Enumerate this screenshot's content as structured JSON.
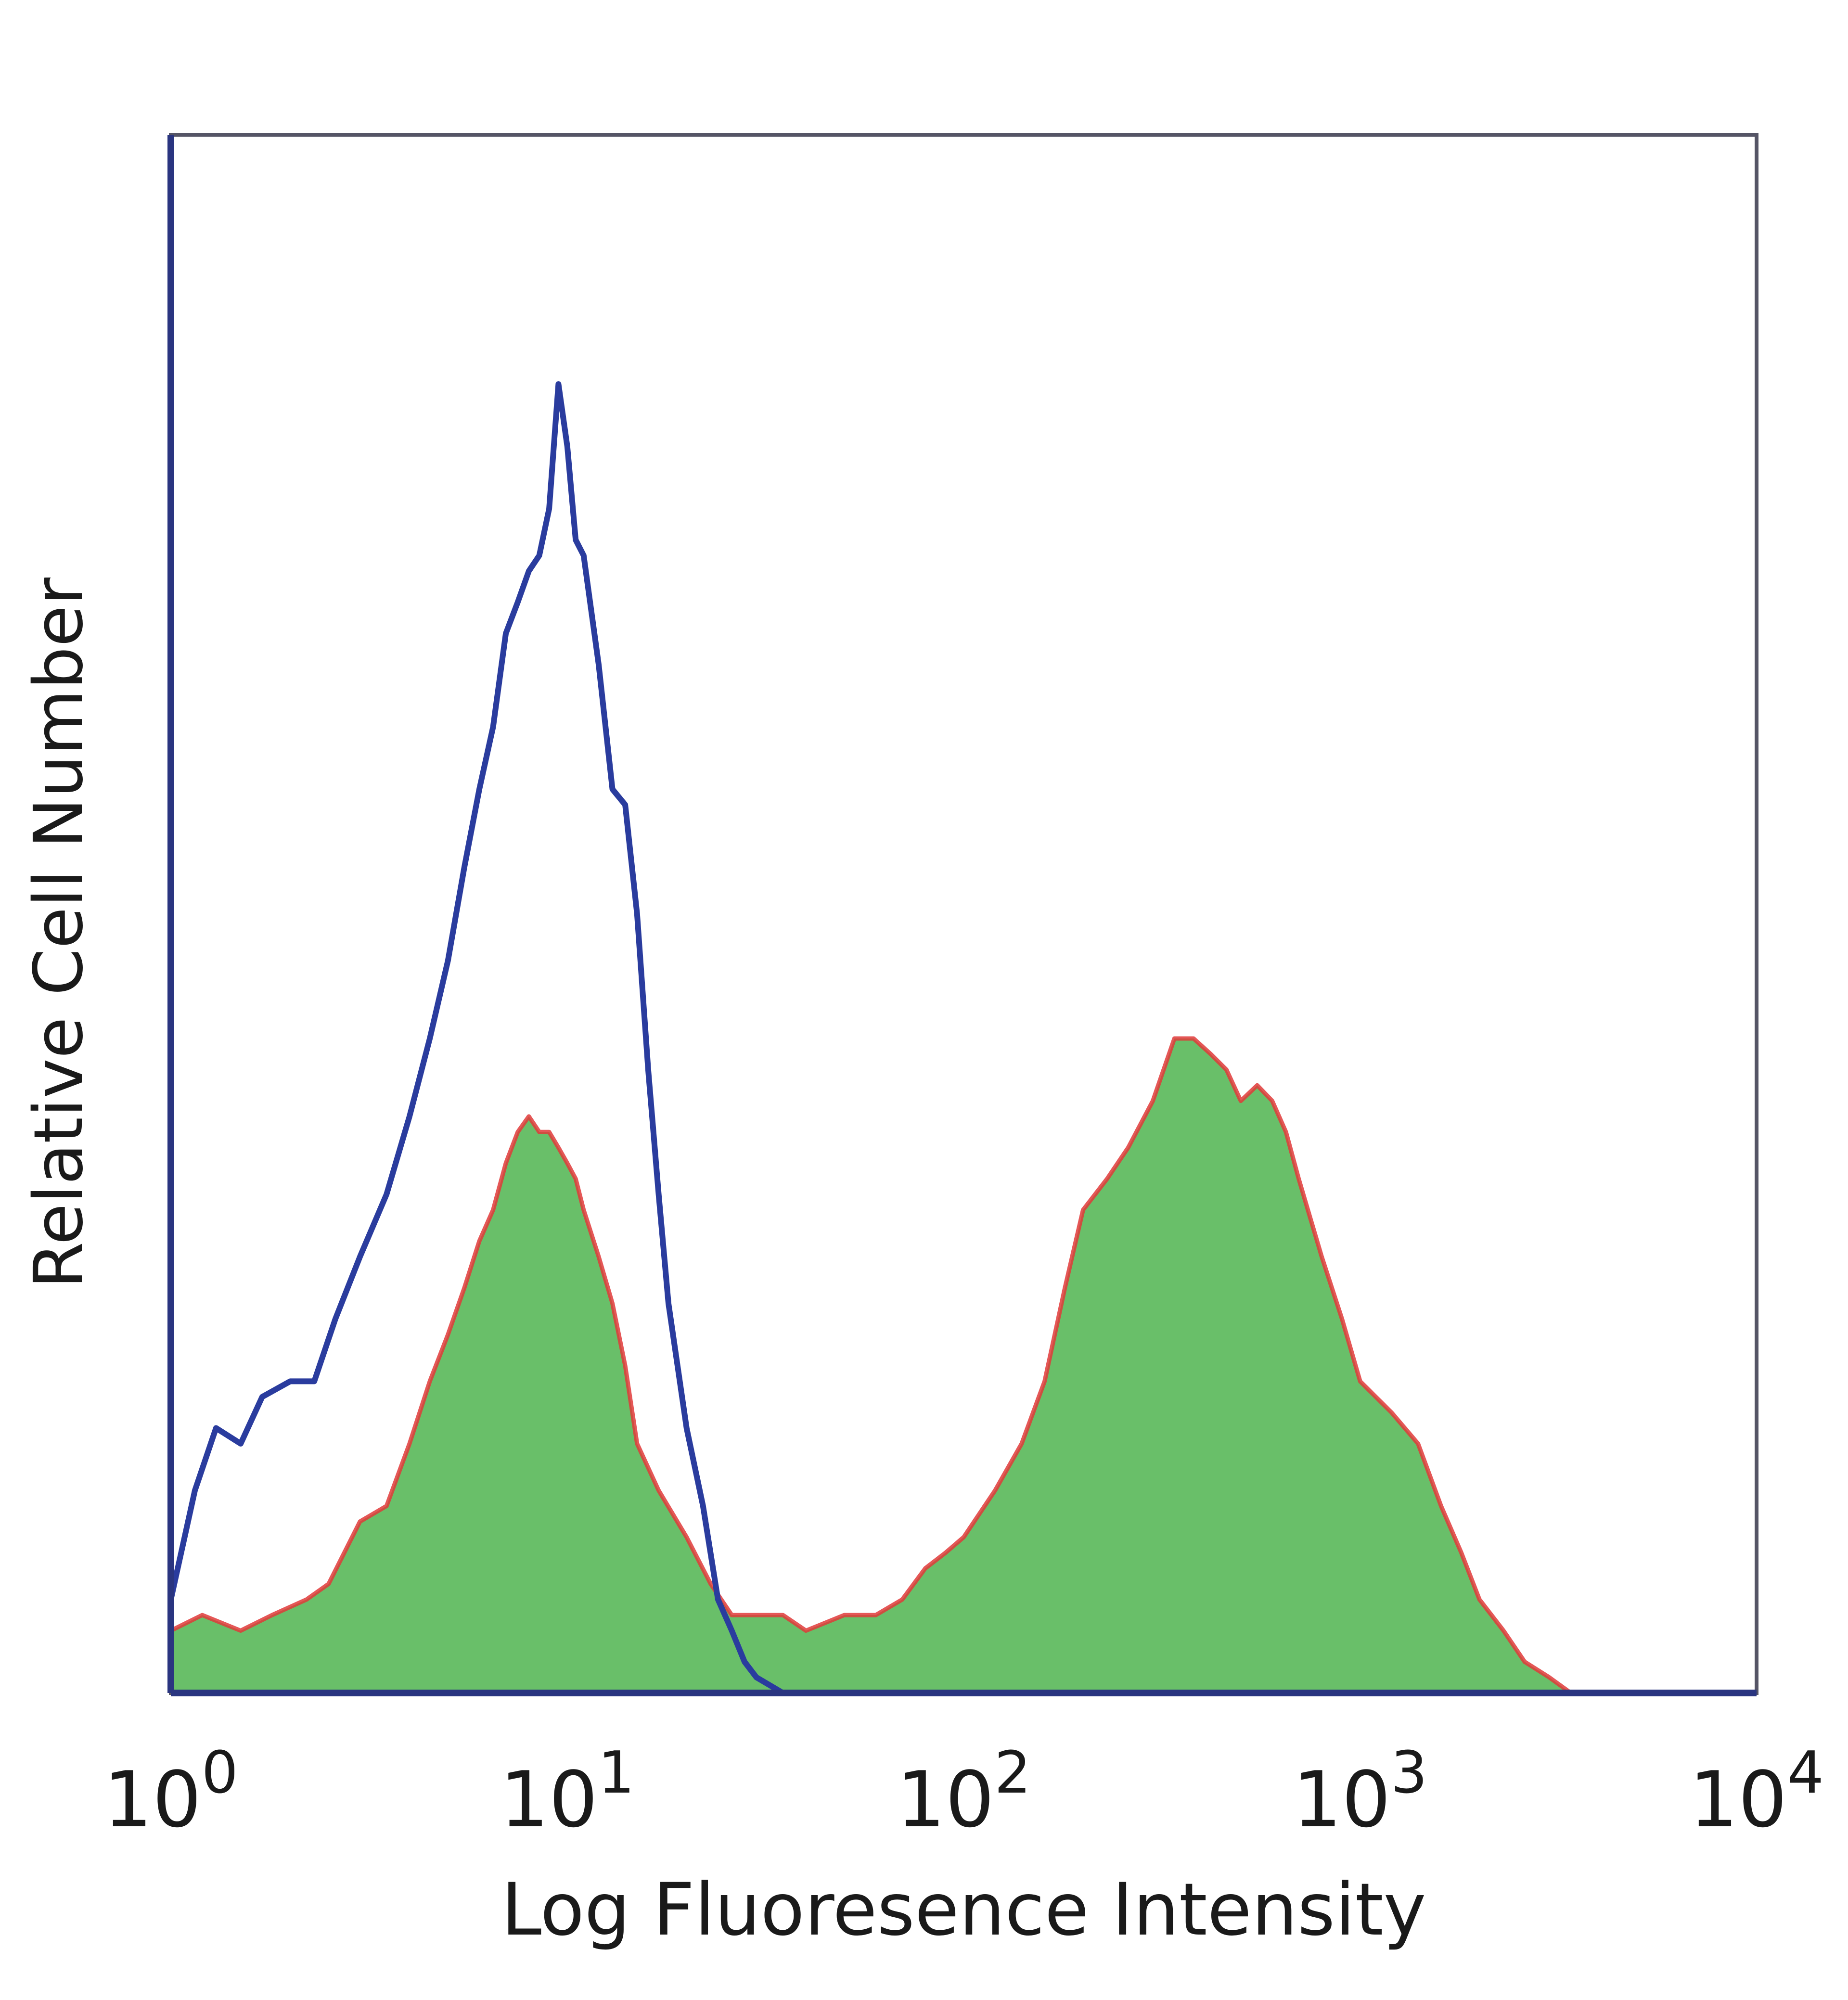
{
  "chart_data": {
    "type": "area",
    "title": "",
    "xlabel": "Log Fluoresence Intensity",
    "ylabel": "Relative Cell Number",
    "x_scale": "log",
    "xlim": [
      1,
      10000
    ],
    "ylim": [
      0,
      100
    ],
    "grid": false,
    "legend": "none",
    "x_ticks": [
      {
        "base": "10",
        "exp": "0",
        "value": 1
      },
      {
        "base": "10",
        "exp": "1",
        "value": 10
      },
      {
        "base": "10",
        "exp": "2",
        "value": 100
      },
      {
        "base": "10",
        "exp": "3",
        "value": 1000
      },
      {
        "base": "10",
        "exp": "4",
        "value": 10000
      }
    ],
    "colors": {
      "control_line": "#2a3c9e",
      "stained_fill": "#69bf69",
      "stained_line": "#e03a3a",
      "axis": "#2a3580"
    },
    "series": [
      {
        "style": "line",
        "color": "#2a3c9e",
        "x": [
          1.0,
          1.15,
          1.3,
          1.5,
          1.7,
          2.0,
          2.3,
          2.6,
          3.0,
          3.5,
          4.0,
          4.5,
          5.0,
          5.5,
          6.0,
          6.5,
          7.0,
          7.5,
          8.0,
          8.5,
          9.0,
          9.5,
          10.0,
          10.5,
          11.0,
          12.0,
          13.0,
          14.0,
          15.0,
          16.0,
          17.0,
          18.0,
          20.0,
          22.0,
          24.0,
          26.0,
          28.0,
          30.0,
          35.0,
          40.0,
          50.0,
          60.0,
          80.0,
          120.0,
          200.0,
          300.0,
          500.0,
          1000.0,
          3000.0,
          10000.0
        ],
        "y": [
          6,
          13,
          17,
          16,
          19,
          20,
          20,
          24,
          28,
          32,
          37,
          42,
          47,
          53,
          58,
          62,
          68,
          70,
          72,
          73,
          76,
          84,
          80,
          74,
          73,
          66,
          58,
          57,
          50,
          40,
          32,
          25,
          17,
          12,
          6,
          4,
          2,
          1,
          0,
          0,
          0,
          0,
          0,
          0,
          0,
          0,
          0,
          0,
          0,
          0
        ]
      },
      {
        "style": "filled",
        "color": "#69bf69",
        "line_color": "#e03a3a",
        "x": [
          1.0,
          1.2,
          1.5,
          1.8,
          2.2,
          2.5,
          3.0,
          3.5,
          4.0,
          4.5,
          5.0,
          5.5,
          6.0,
          6.5,
          7.0,
          7.5,
          8.0,
          8.5,
          9.0,
          9.5,
          10.0,
          10.5,
          11.0,
          12.0,
          13.0,
          14.0,
          15.0,
          17.0,
          20.0,
          23.0,
          26.0,
          30.0,
          35.0,
          40.0,
          50.0,
          60.0,
          70.0,
          80.0,
          90.0,
          100.0,
          120.0,
          140.0,
          160.0,
          180.0,
          200.0,
          230.0,
          260.0,
          300.0,
          340.0,
          380.0,
          420.0,
          460.0,
          500.0,
          550.0,
          600.0,
          650.0,
          700.0,
          800.0,
          900.0,
          1000.0,
          1200.0,
          1400.0,
          1600.0,
          1800.0,
          2000.0,
          2300.0,
          2600.0,
          3000.0,
          3400.0,
          4000.0,
          10000.0
        ],
        "y": [
          4,
          5,
          4,
          5,
          6,
          7,
          11,
          12,
          16,
          20,
          23,
          26,
          29,
          31,
          34,
          36,
          37,
          36,
          36,
          35,
          34,
          33,
          31,
          28,
          25,
          21,
          16,
          13,
          10,
          7,
          5,
          5,
          5,
          4,
          5,
          5,
          6,
          8,
          9,
          10,
          13,
          16,
          20,
          26,
          31,
          33,
          35,
          38,
          42,
          42,
          41,
          40,
          38,
          39,
          38,
          36,
          33,
          28,
          24,
          20,
          18,
          16,
          12,
          9,
          6,
          4,
          2,
          1,
          0,
          0,
          0
        ]
      }
    ]
  }
}
